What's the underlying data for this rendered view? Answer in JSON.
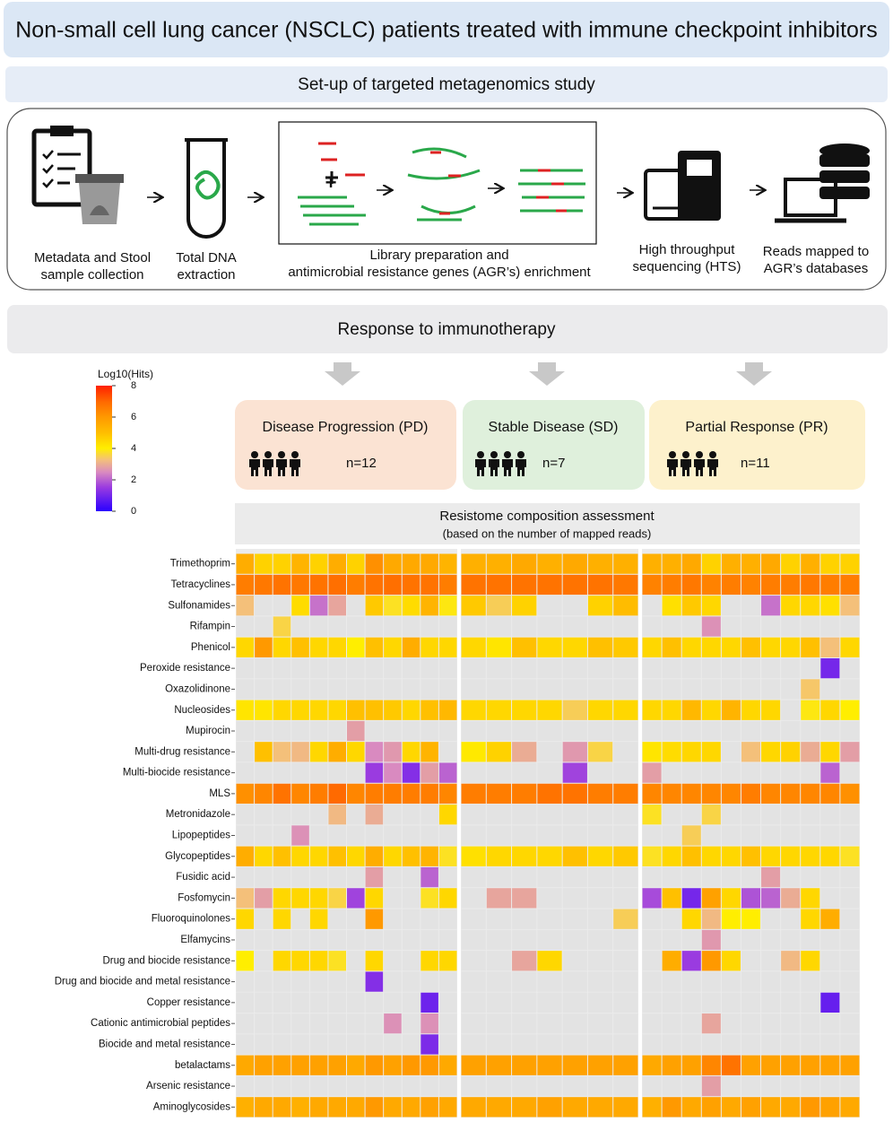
{
  "header": {
    "title": "Non-small cell lung cancer (NSCLC) patients treated with immune checkpoint inhibitors"
  },
  "setup": {
    "title": "Set-up of targeted metagenomics study",
    "steps": [
      {
        "lines": [
          "Metadata and Stool",
          "sample collection"
        ]
      },
      {
        "lines": [
          "Total DNA",
          "extraction"
        ]
      },
      {
        "lines": [
          "Library preparation and",
          "antimicrobial resistance genes (AGR’s) enrichment"
        ]
      },
      {
        "lines": [
          "High throughput",
          "sequencing (HTS)"
        ]
      },
      {
        "lines": [
          "Reads mapped to",
          "AGR’s databases"
        ]
      }
    ]
  },
  "response": {
    "title": "Response to immunotherapy",
    "groups": [
      {
        "name": "Disease Progression (PD)",
        "n": "n=12"
      },
      {
        "name": "Stable Disease (SD)",
        "n": "n=7"
      },
      {
        "name": "Partial Response (PR)",
        "n": "n=11"
      }
    ]
  },
  "colorbar": {
    "title": "Log10(Hits)",
    "lim": [
      0,
      8
    ],
    "ticks": [
      0,
      2,
      4,
      6,
      8
    ]
  },
  "heatmap": {
    "title": "Resistome composition assessment",
    "subtitle": "(based on the number of mapped reads)",
    "rows": [
      "Trimethoprim",
      "Tetracyclines",
      "Sulfonamides",
      "Rifampin",
      "Phenicol",
      "Peroxide resistance",
      "Oxazolidinone",
      "Nucleosides",
      "Mupirocin",
      "Multi-drug resistance",
      "Multi-biocide resistance",
      "MLS",
      "Metronidazole",
      "Lipopeptides",
      "Glycopeptides",
      "Fusidic acid",
      "Fosfomycin",
      "Fluoroquinolones",
      "Elfamycins",
      "Drug and biocide resistance",
      "Drug and biocide and metal resistance",
      "Copper resistance",
      "Cationic antimicrobial peptides",
      "Biocide and metal resistance",
      "betalactams",
      "Arsenic resistance",
      "Aminoglycosides"
    ],
    "panels": [
      [
        [
          5.5,
          4.6,
          4.6,
          5.3,
          4.6,
          5.5,
          4.6,
          6.2,
          5.6,
          5.6,
          5.6,
          5.3
        ],
        [
          6.6,
          6.7,
          6.8,
          6.7,
          6.8,
          6.9,
          6.6,
          6.8,
          6.9,
          6.8,
          6.8,
          6.6
        ],
        [
          3.3,
          null,
          null,
          4.4,
          2.2,
          2.9,
          null,
          4.8,
          3.8,
          4.4,
          5.3,
          3.9
        ],
        [
          null,
          null,
          3.6,
          null,
          null,
          null,
          null,
          null,
          null,
          null,
          null,
          null
        ],
        [
          4.5,
          6,
          4.5,
          5,
          4.5,
          4.5,
          4,
          5,
          4.5,
          5.5,
          4.5,
          4.5
        ],
        [
          null,
          null,
          null,
          null,
          null,
          null,
          null,
          null,
          null,
          null,
          null,
          null
        ],
        [
          null,
          null,
          null,
          null,
          null,
          null,
          null,
          null,
          null,
          null,
          null,
          null
        ],
        [
          4.2,
          4.2,
          4.5,
          4.5,
          4.5,
          4.5,
          5,
          5,
          4.8,
          4.5,
          5,
          5.2
        ],
        [
          null,
          null,
          null,
          null,
          null,
          null,
          2.8,
          null,
          null,
          null,
          null,
          null
        ],
        [
          null,
          5,
          3.3,
          3.2,
          4.5,
          5.5,
          4.5,
          2.5,
          2.7,
          4.5,
          5.3,
          null
        ],
        [
          null,
          null,
          null,
          null,
          null,
          null,
          null,
          1.5,
          2.5,
          1.2,
          2.8,
          2
        ],
        [
          6.2,
          6.4,
          6.8,
          6.4,
          6.6,
          7,
          6.4,
          6.6,
          6.6,
          6.6,
          6.6,
          6.4
        ],
        [
          null,
          null,
          null,
          null,
          null,
          3.2,
          null,
          3,
          null,
          null,
          null,
          4.5
        ],
        [
          null,
          null,
          null,
          2.6,
          null,
          null,
          null,
          null,
          null,
          null,
          null,
          null
        ],
        [
          5.5,
          4.5,
          5,
          4.5,
          4.5,
          5,
          4.5,
          5.5,
          4.5,
          5,
          5.3,
          3.8
        ],
        [
          null,
          null,
          null,
          null,
          null,
          null,
          null,
          2.8,
          null,
          null,
          2,
          null
        ],
        [
          3.3,
          2.8,
          4.5,
          4.5,
          4.5,
          3.6,
          1.6,
          4.5,
          null,
          null,
          3.8,
          4.5
        ],
        [
          4.5,
          null,
          4.5,
          null,
          4.5,
          null,
          null,
          6,
          null,
          null,
          null,
          null
        ],
        [
          null,
          null,
          null,
          null,
          null,
          null,
          null,
          null,
          null,
          null,
          null,
          null
        ],
        [
          4,
          null,
          4.5,
          4.5,
          4.5,
          3.8,
          null,
          4.5,
          null,
          null,
          4.5,
          4.5
        ],
        [
          null,
          null,
          null,
          null,
          null,
          null,
          null,
          1.2,
          null,
          null,
          null,
          null
        ],
        [
          null,
          null,
          null,
          null,
          null,
          null,
          null,
          null,
          null,
          null,
          0.9,
          null
        ],
        [
          null,
          null,
          null,
          null,
          null,
          null,
          null,
          null,
          2.6,
          null,
          2.6,
          null
        ],
        [
          null,
          null,
          null,
          null,
          null,
          null,
          null,
          null,
          null,
          null,
          1.1,
          null
        ],
        [
          5.6,
          5.8,
          5.8,
          5.8,
          5.8,
          5.8,
          5.6,
          6,
          5.8,
          6,
          6,
          5.6
        ],
        [
          null,
          null,
          null,
          null,
          null,
          null,
          null,
          null,
          null,
          null,
          null,
          null
        ],
        [
          5.4,
          5.6,
          5.6,
          5.4,
          5.6,
          5.6,
          5.6,
          6,
          5.6,
          5.6,
          5.8,
          5.6
        ]
      ],
      [
        [
          5.4,
          5.4,
          5.6,
          5.4,
          5.6,
          5.4,
          5.4
        ],
        [
          6.8,
          6.8,
          6.8,
          6.8,
          6.8,
          6.8,
          6.7
        ],
        [
          4.8,
          3.5,
          4.6,
          null,
          null,
          4.6,
          5.1
        ],
        [
          null,
          null,
          null,
          null,
          null,
          null,
          null
        ],
        [
          4.5,
          4.2,
          5,
          4.5,
          4.5,
          5,
          4.8
        ],
        [
          null,
          null,
          null,
          null,
          null,
          null,
          null
        ],
        [
          null,
          null,
          null,
          null,
          null,
          null,
          null
        ],
        [
          4.5,
          4.5,
          4.5,
          4.5,
          3.5,
          4.5,
          4.5
        ],
        [
          null,
          null,
          null,
          null,
          null,
          null,
          null
        ],
        [
          4.1,
          4.6,
          3,
          null,
          2.7,
          3.6,
          null
        ],
        [
          null,
          null,
          null,
          null,
          1.6,
          null,
          null
        ],
        [
          6.6,
          6.6,
          6.6,
          6.8,
          6.8,
          6.6,
          6.6
        ],
        [
          null,
          null,
          null,
          null,
          null,
          null,
          null
        ],
        [
          null,
          null,
          null,
          null,
          null,
          null,
          null
        ],
        [
          4.3,
          4.5,
          4.5,
          4.5,
          5,
          4.5,
          4.8
        ],
        [
          null,
          null,
          null,
          null,
          null,
          null,
          null
        ],
        [
          null,
          2.9,
          2.9,
          null,
          null,
          null,
          null
        ],
        [
          null,
          null,
          null,
          null,
          null,
          null,
          3.5
        ],
        [
          null,
          null,
          null,
          null,
          null,
          null,
          null
        ],
        [
          null,
          null,
          2.9,
          4.5,
          null,
          null,
          null
        ],
        [
          null,
          null,
          null,
          null,
          null,
          null,
          null
        ],
        [
          null,
          null,
          null,
          null,
          null,
          null,
          null
        ],
        [
          null,
          null,
          null,
          null,
          null,
          null,
          null
        ],
        [
          null,
          null,
          null,
          null,
          null,
          null,
          null
        ],
        [
          5.8,
          5.8,
          5.8,
          5.8,
          5.8,
          5.8,
          5.8
        ],
        [
          null,
          null,
          null,
          null,
          null,
          null,
          null
        ],
        [
          5.6,
          5.6,
          5.6,
          5.8,
          5.6,
          5.6,
          5.6
        ]
      ],
      [
        [
          5.4,
          5.4,
          5.6,
          4.6,
          5.4,
          5.4,
          5.6,
          4.6,
          5.4,
          4.6,
          4.6
        ],
        [
          6.5,
          6.6,
          6.7,
          6.5,
          6.6,
          6.5,
          6.6,
          6.6,
          6.7,
          6.6,
          6.6
        ],
        [
          null,
          4.3,
          4.8,
          4.5,
          null,
          null,
          2.2,
          4.5,
          4.5,
          4.3,
          3.3
        ],
        [
          null,
          null,
          null,
          2.6,
          null,
          null,
          null,
          null,
          null,
          null,
          null
        ],
        [
          4.5,
          5,
          4.5,
          4.5,
          4.5,
          5,
          4.5,
          4.5,
          5,
          3.3,
          4.5
        ],
        [
          null,
          null,
          null,
          null,
          null,
          null,
          null,
          null,
          null,
          1,
          null
        ],
        [
          null,
          null,
          null,
          null,
          null,
          null,
          null,
          null,
          3.4,
          null,
          null
        ],
        [
          4.5,
          4.5,
          5.2,
          4.5,
          5.3,
          4.5,
          4.5,
          null,
          3.9,
          4.5,
          4
        ],
        [
          null,
          null,
          null,
          null,
          null,
          null,
          null,
          null,
          null,
          null,
          null
        ],
        [
          4.2,
          4.4,
          4.5,
          4.5,
          null,
          3.3,
          4.5,
          4.6,
          3,
          4.5,
          2.8
        ],
        [
          2.8,
          null,
          null,
          null,
          null,
          null,
          null,
          null,
          null,
          2,
          null
        ],
        [
          6.4,
          6.4,
          6.4,
          6.4,
          6.4,
          6.6,
          6.4,
          6.4,
          6.4,
          6.4,
          6.2
        ],
        [
          3.8,
          null,
          null,
          3.6,
          null,
          null,
          null,
          null,
          null,
          null,
          null
        ],
        [
          null,
          null,
          3.5,
          null,
          null,
          null,
          null,
          null,
          null,
          null,
          null
        ],
        [
          3.8,
          4.5,
          5,
          4.5,
          4.5,
          5,
          4.5,
          4.5,
          4.5,
          4.5,
          3.8
        ],
        [
          null,
          null,
          null,
          null,
          null,
          null,
          2.8,
          null,
          null,
          null,
          null
        ],
        [
          1.7,
          5,
          1,
          5.8,
          4.5,
          1.8,
          2,
          3,
          4.5,
          null,
          null
        ],
        [
          null,
          null,
          4.5,
          3.2,
          4,
          4,
          null,
          null,
          4.5,
          5.5,
          null
        ],
        [
          null,
          null,
          null,
          2.7,
          null,
          null,
          null,
          null,
          null,
          null,
          null
        ],
        [
          null,
          5.5,
          1.5,
          6,
          4.5,
          null,
          null,
          3.2,
          4.5,
          null,
          null
        ],
        [
          null,
          null,
          null,
          null,
          null,
          null,
          null,
          null,
          null,
          null,
          null
        ],
        [
          null,
          null,
          null,
          null,
          null,
          null,
          null,
          null,
          null,
          0.8,
          null
        ],
        [
          null,
          null,
          null,
          2.9,
          null,
          null,
          null,
          null,
          null,
          null,
          null
        ],
        [
          null,
          null,
          null,
          null,
          null,
          null,
          null,
          null,
          null,
          null,
          null
        ],
        [
          5.6,
          5.8,
          5.8,
          6.4,
          6.8,
          5.8,
          5.8,
          5.8,
          5.8,
          5.8,
          5.8
        ],
        [
          null,
          null,
          null,
          2.8,
          null,
          null,
          null,
          null,
          null,
          null,
          null
        ],
        [
          5.4,
          6,
          5.6,
          5.8,
          5.6,
          5.8,
          5.6,
          5.6,
          6,
          5.8,
          5.6
        ]
      ]
    ]
  }
}
